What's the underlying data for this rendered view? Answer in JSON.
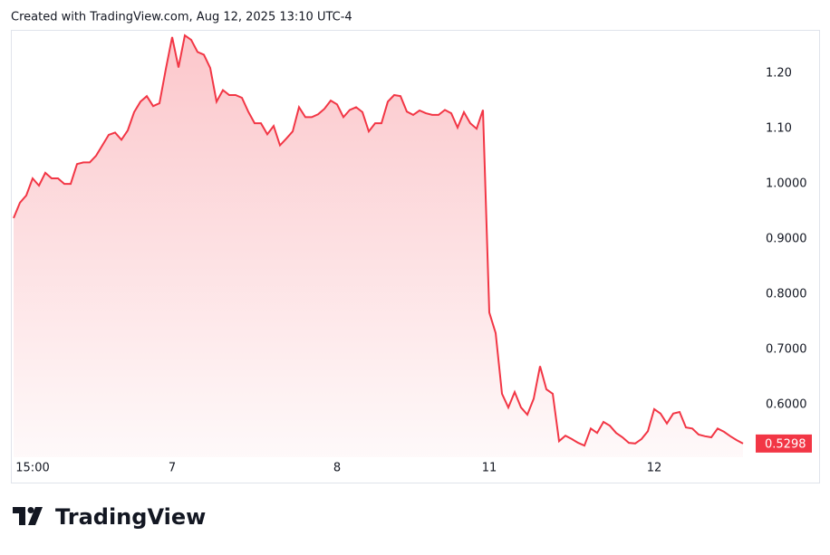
{
  "chart_data": {
    "type": "area",
    "title": "Created with TradingView.com, Aug 12, 2025 13:10 UTC-4",
    "brand": "TradingView",
    "categories": [
      null,
      null,
      null,
      "15:00",
      null,
      null,
      null,
      null,
      null,
      null,
      null,
      null,
      null,
      null,
      null,
      null,
      null,
      null,
      null,
      null,
      null,
      null,
      null,
      null,
      null,
      "7",
      null,
      null,
      null,
      null,
      null,
      null,
      null,
      null,
      null,
      null,
      null,
      null,
      null,
      null,
      null,
      null,
      null,
      null,
      null,
      null,
      null,
      null,
      null,
      null,
      null,
      "8",
      null,
      null,
      null,
      null,
      null,
      null,
      null,
      null,
      null,
      null,
      null,
      null,
      null,
      null,
      null,
      null,
      null,
      null,
      null,
      null,
      null,
      null,
      null,
      "11",
      null,
      null,
      null,
      null,
      null,
      null,
      null,
      null,
      null,
      null,
      null,
      null,
      null,
      null,
      null,
      null,
      null,
      null,
      null,
      null,
      null,
      null,
      null,
      null,
      null,
      "12",
      null,
      null,
      null,
      null,
      null,
      null,
      null,
      null,
      null,
      null,
      null,
      null,
      null,
      null
    ],
    "series": [
      {
        "color": "#f23645",
        "values": [
          0.938,
          0.966,
          0.979,
          1.01,
          0.997,
          1.02,
          1.01,
          1.01,
          1.0,
          1.0,
          1.036,
          1.039,
          1.039,
          1.051,
          1.07,
          1.089,
          1.093,
          1.08,
          1.097,
          1.13,
          1.149,
          1.159,
          1.141,
          1.146,
          1.208,
          1.266,
          1.211,
          1.269,
          1.261,
          1.239,
          1.234,
          1.21,
          1.149,
          1.17,
          1.161,
          1.161,
          1.156,
          1.131,
          1.11,
          1.11,
          1.09,
          1.105,
          1.07,
          1.082,
          1.095,
          1.139,
          1.121,
          1.121,
          1.126,
          1.136,
          1.151,
          1.144,
          1.121,
          1.134,
          1.139,
          1.13,
          1.095,
          1.11,
          1.11,
          1.149,
          1.161,
          1.159,
          1.131,
          1.125,
          1.133,
          1.128,
          1.125,
          1.125,
          1.134,
          1.128,
          1.102,
          1.13,
          1.11,
          1.1,
          1.134,
          0.767,
          0.73,
          0.62,
          0.595,
          0.623,
          0.595,
          0.582,
          0.611,
          0.67,
          0.628,
          0.62,
          0.534,
          0.544,
          0.538,
          0.531,
          0.526,
          0.557,
          0.549,
          0.569,
          0.562,
          0.549,
          0.541,
          0.531,
          0.53,
          0.538,
          0.552,
          0.592,
          0.584,
          0.566,
          0.584,
          0.587,
          0.559,
          0.557,
          0.546,
          0.543,
          0.541,
          0.557,
          0.551,
          0.543,
          0.536,
          0.5298
        ]
      }
    ],
    "ylim": [
      0.505,
      1.279
    ],
    "yticks": [
      {
        "value": 1.2,
        "label": "1.20"
      },
      {
        "value": 1.1,
        "label": "1.10"
      },
      {
        "value": 1.0,
        "label": "1.0000"
      },
      {
        "value": 0.9,
        "label": "0.9000"
      },
      {
        "value": 0.8,
        "label": "0.8000"
      },
      {
        "value": 0.7,
        "label": "0.7000"
      },
      {
        "value": 0.6,
        "label": "0.6000"
      }
    ],
    "grid": false
  }
}
